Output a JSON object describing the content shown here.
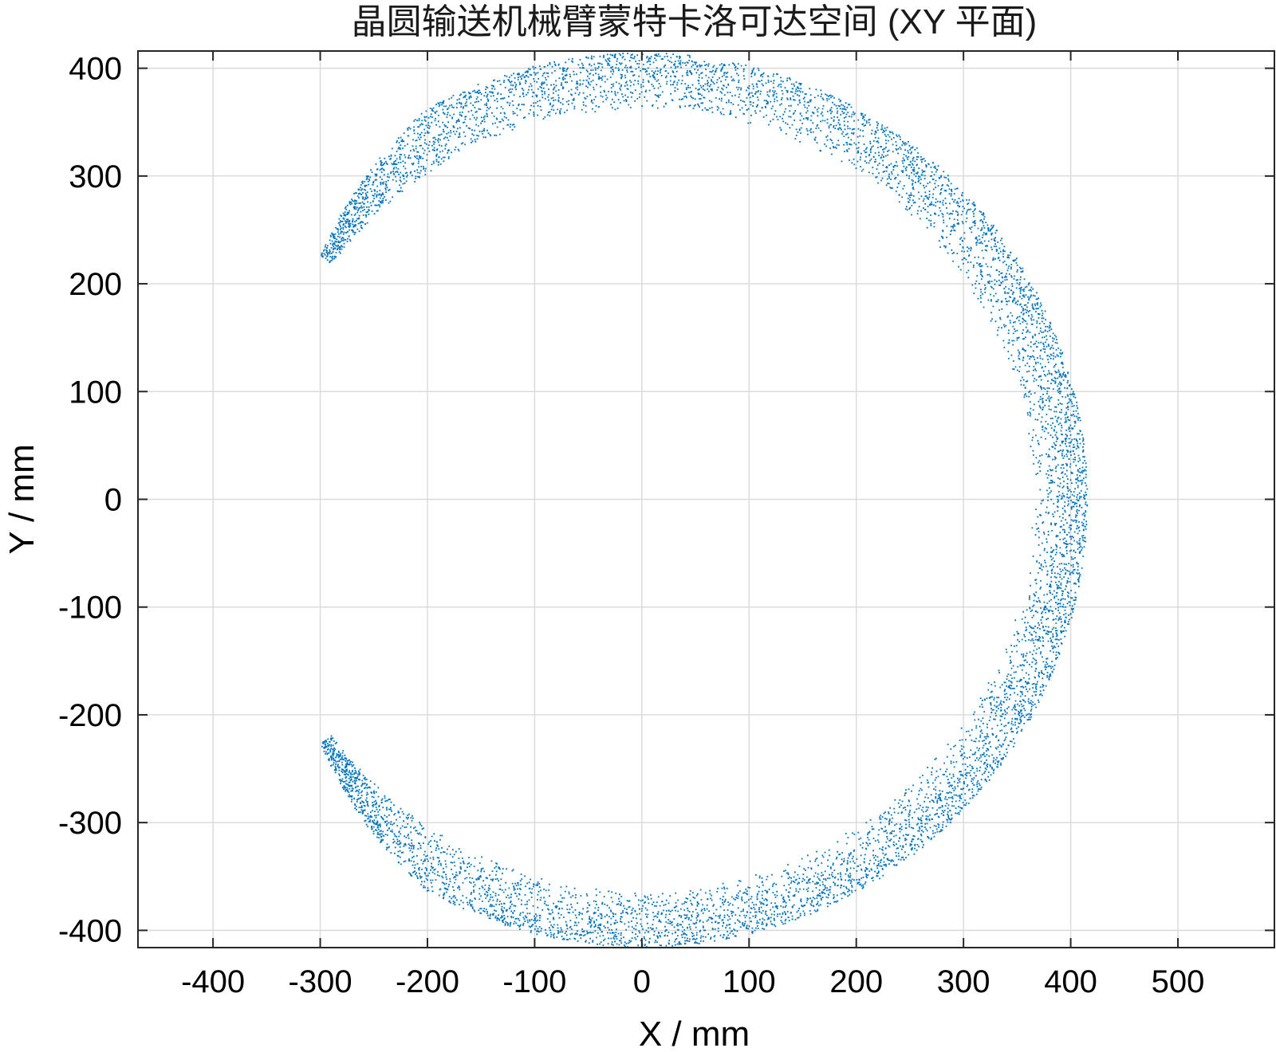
{
  "chart_data": {
    "type": "scatter",
    "title": "晶圆输送机械臂蒙特卡洛可达空间 (XY 平面)",
    "xlabel": "X / mm",
    "ylabel": "Y / mm",
    "xlim": [
      -470,
      590
    ],
    "ylim": [
      -416,
      416
    ],
    "x_ticks": [
      -400,
      -300,
      -200,
      -100,
      0,
      100,
      200,
      300,
      400,
      500
    ],
    "y_ticks": [
      -400,
      -300,
      -200,
      -100,
      0,
      100,
      200,
      300,
      400
    ],
    "grid": true,
    "marker_color": "#0072BD",
    "point_count_drawn": 26000,
    "series": [
      {
        "values_description": "annular sector of sampled end-effector positions",
        "inner_radius_mm": 363,
        "outer_radius_mm": 415,
        "angle_start_deg": -143,
        "angle_end_deg": 143,
        "tip_point_upper": [
          -294,
          218
        ],
        "tip_point_lower": [
          -294,
          -218
        ],
        "extreme_right_x": 415,
        "extreme_top_y": 415,
        "extreme_bottom_y": -415
      }
    ]
  }
}
